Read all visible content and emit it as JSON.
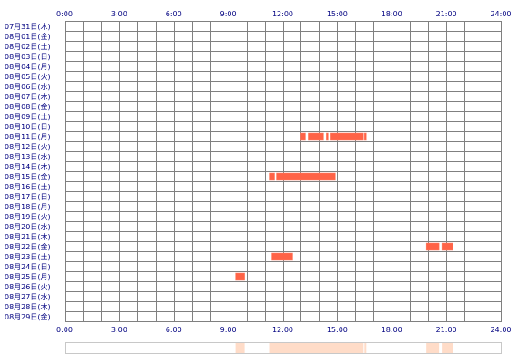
{
  "chart_data": {
    "type": "timeline",
    "x_axis": {
      "tick_labels": [
        "0:00",
        "3:00",
        "6:00",
        "9:00",
        "12:00",
        "15:00",
        "18:00",
        "21:00",
        "24:00"
      ],
      "range_hours": [
        0,
        24
      ]
    },
    "rows": [
      "07月31日(木)",
      "08月01日(金)",
      "08月02日(土)",
      "08月03日(日)",
      "08月04日(月)",
      "08月05日(火)",
      "08月06日(水)",
      "08月07日(木)",
      "08月08日(金)",
      "08月09日(土)",
      "08月10日(日)",
      "08月11日(月)",
      "08月12日(火)",
      "08月13日(水)",
      "08月14日(木)",
      "08月15日(金)",
      "08月16日(土)",
      "08月17日(日)",
      "08月18日(月)",
      "08月19日(火)",
      "08月20日(水)",
      "08月21日(木)",
      "08月22日(金)",
      "08月23日(土)",
      "08月24日(日)",
      "08月25日(月)",
      "08月26日(火)",
      "08月27日(水)",
      "08月28日(木)",
      "08月29日(金)"
    ],
    "activity": [
      {
        "row": 11,
        "start": 13.0,
        "end": 13.25
      },
      {
        "row": 11,
        "start": 13.4,
        "end": 14.25
      },
      {
        "row": 11,
        "start": 14.4,
        "end": 14.5
      },
      {
        "row": 11,
        "start": 14.6,
        "end": 16.45
      },
      {
        "row": 11,
        "start": 16.5,
        "end": 16.6
      },
      {
        "row": 15,
        "start": 11.25,
        "end": 11.55
      },
      {
        "row": 15,
        "start": 11.65,
        "end": 14.9
      },
      {
        "row": 22,
        "start": 19.9,
        "end": 20.6
      },
      {
        "row": 22,
        "start": 20.75,
        "end": 21.35
      },
      {
        "row": 23,
        "start": 11.4,
        "end": 12.55
      },
      {
        "row": 25,
        "start": 9.4,
        "end": 9.9
      }
    ],
    "colors": {
      "activity": "#ff6347",
      "activity_edge": "#ff7f62",
      "summary": "#ffdcc8",
      "grid": "#808080",
      "text": "#000080"
    }
  }
}
